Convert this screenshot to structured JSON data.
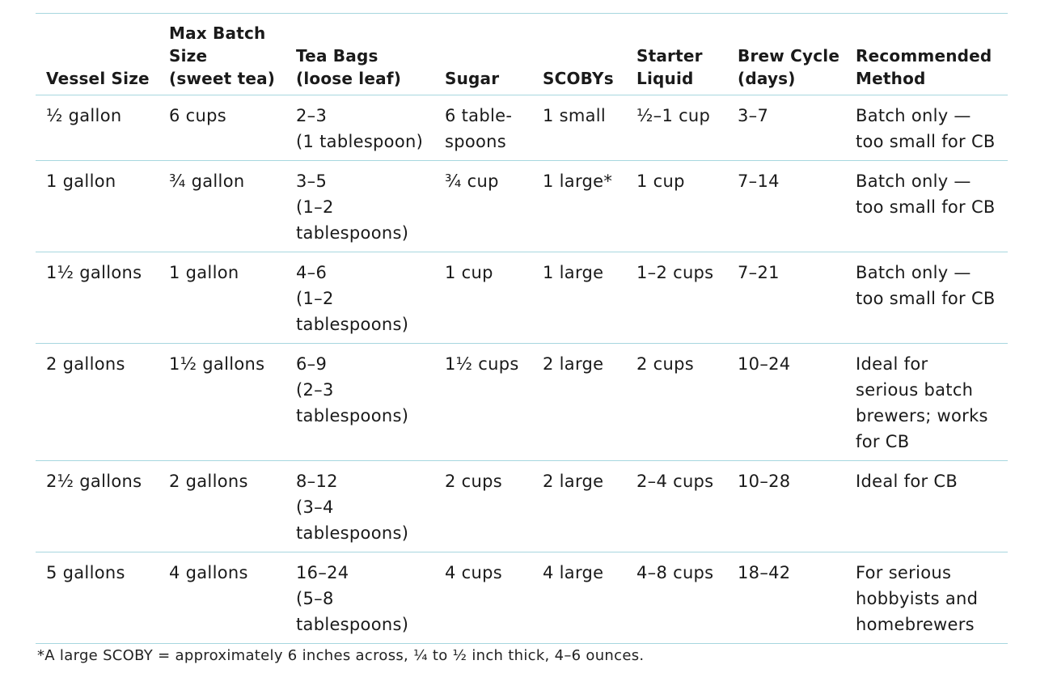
{
  "table": {
    "headers": [
      [
        "Vessel Size"
      ],
      [
        "Max Batch",
        "Size",
        "(sweet tea)"
      ],
      [
        "Tea Bags",
        "(loose leaf)"
      ],
      [
        "Sugar"
      ],
      [
        "SCOBYs"
      ],
      [
        "Starter",
        "Liquid"
      ],
      [
        "Brew Cycle",
        "(days)"
      ],
      [
        "Recommended",
        "Method"
      ]
    ],
    "rows": [
      [
        [
          "½ gallon"
        ],
        [
          "6 cups"
        ],
        [
          "2–3",
          "(1 tablespoon)"
        ],
        [
          "6 table-",
          "spoons"
        ],
        [
          "1 small"
        ],
        [
          "½–1 cup"
        ],
        [
          "3–7"
        ],
        [
          "Batch only —",
          "too small for CB"
        ]
      ],
      [
        [
          "1 gallon"
        ],
        [
          "¾ gallon"
        ],
        [
          "3–5",
          "(1–2",
          "tablespoons)"
        ],
        [
          "¾ cup"
        ],
        [
          "1 large*"
        ],
        [
          "1 cup"
        ],
        [
          "7–14"
        ],
        [
          "Batch only —",
          "too small for CB"
        ]
      ],
      [
        [
          "1½ gallons"
        ],
        [
          "1 gallon"
        ],
        [
          "4–6",
          "(1–2",
          "tablespoons)"
        ],
        [
          "1 cup"
        ],
        [
          "1 large"
        ],
        [
          "1–2 cups"
        ],
        [
          "7–21"
        ],
        [
          "Batch only —",
          "too small for CB"
        ]
      ],
      [
        [
          "2 gallons"
        ],
        [
          "1½ gallons"
        ],
        [
          "6–9",
          "(2–3",
          "tablespoons)"
        ],
        [
          "1½ cups"
        ],
        [
          "2 large"
        ],
        [
          "2 cups"
        ],
        [
          "10–24"
        ],
        [
          "Ideal for",
          "serious batch",
          "brewers; works",
          "for CB"
        ]
      ],
      [
        [
          "2½ gallons"
        ],
        [
          "2 gallons"
        ],
        [
          "8–12",
          "(3–4",
          "tablespoons)"
        ],
        [
          "2 cups"
        ],
        [
          "2 large"
        ],
        [
          "2–4 cups"
        ],
        [
          "10–28"
        ],
        [
          "Ideal for CB"
        ]
      ],
      [
        [
          "5 gallons"
        ],
        [
          "4 gallons"
        ],
        [
          "16–24",
          "(5–8",
          "tablespoons)"
        ],
        [
          "4 cups"
        ],
        [
          "4 large"
        ],
        [
          "4–8 cups"
        ],
        [
          "18–42"
        ],
        [
          "For serious",
          "hobbyists and",
          "homebrewers"
        ]
      ]
    ]
  },
  "footnote": "*A large SCOBY = approximately 6 inches across, ¼ to ½ inch thick, 4–6 ounces.",
  "colors": {
    "rule": "#a7d7df",
    "text": "#1a1a1a"
  }
}
